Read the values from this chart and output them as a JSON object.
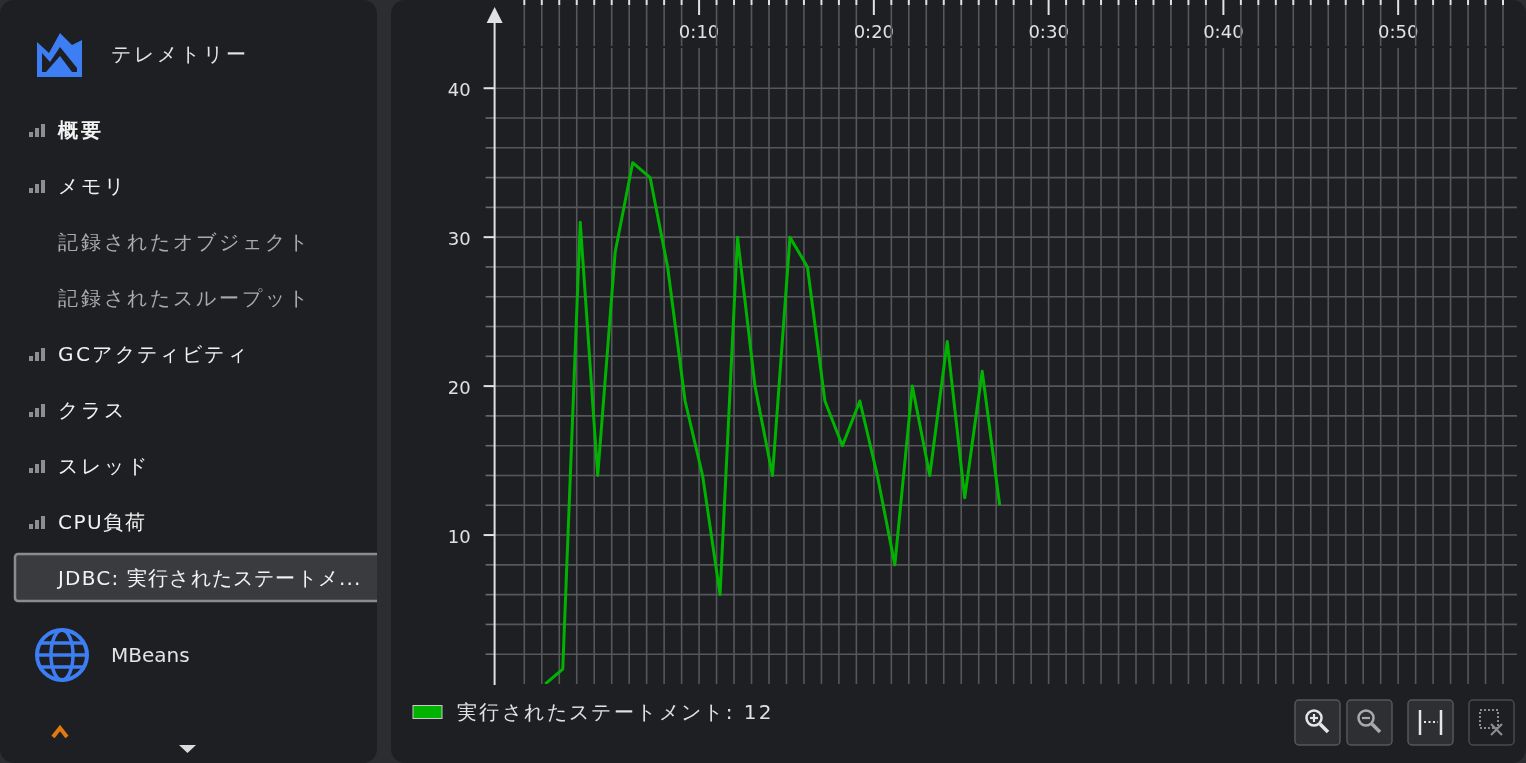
{
  "chart_data": {
    "type": "line",
    "x": [
      1.2,
      2.2,
      3.2,
      4.2,
      5.2,
      6.2,
      7.2,
      8.2,
      9.2,
      10.2,
      11.2,
      12.2,
      13.2,
      14.2,
      15.2,
      16.2,
      17.2,
      18.2,
      19.2,
      20.2,
      21.2,
      22.2,
      23.2,
      24.2,
      25.2,
      26.2,
      27.2
    ],
    "series": [
      {
        "name": "実行されたステートメント: 12",
        "color": "#00b300",
        "values": [
          0,
          1,
          31,
          14,
          29,
          35,
          34,
          28,
          19,
          14,
          6,
          30,
          20,
          14,
          30,
          28,
          19,
          16,
          19,
          14,
          8,
          20,
          14,
          23,
          12.5,
          21,
          12
        ]
      }
    ],
    "xlim": [
      -1.7,
      56.8
    ],
    "xticks": [
      {
        "value": 0,
        "label": null
      },
      {
        "value": 1,
        "label": null
      },
      {
        "value": 2,
        "label": null
      },
      {
        "value": 3,
        "label": null
      },
      {
        "value": 4,
        "label": null
      },
      {
        "value": 5,
        "label": null
      },
      {
        "value": 6,
        "label": null
      },
      {
        "value": 7,
        "label": null
      },
      {
        "value": 8,
        "label": null
      },
      {
        "value": 9,
        "label": null
      },
      {
        "value": 10,
        "label": "0:10"
      },
      {
        "value": 11,
        "label": null
      },
      {
        "value": 12,
        "label": null
      },
      {
        "value": 13,
        "label": null
      },
      {
        "value": 14,
        "label": null
      },
      {
        "value": 15,
        "label": null
      },
      {
        "value": 16,
        "label": null
      },
      {
        "value": 17,
        "label": null
      },
      {
        "value": 18,
        "label": null
      },
      {
        "value": 19,
        "label": null
      },
      {
        "value": 20,
        "label": "0:20"
      },
      {
        "value": 21,
        "label": null
      },
      {
        "value": 22,
        "label": null
      },
      {
        "value": 23,
        "label": null
      },
      {
        "value": 24,
        "label": null
      },
      {
        "value": 25,
        "label": null
      },
      {
        "value": 26,
        "label": null
      },
      {
        "value": 27,
        "label": null
      },
      {
        "value": 28,
        "label": null
      },
      {
        "value": 29,
        "label": null
      },
      {
        "value": 30,
        "label": "0:30"
      },
      {
        "value": 31,
        "label": null
      },
      {
        "value": 32,
        "label": null
      },
      {
        "value": 33,
        "label": null
      },
      {
        "value": 34,
        "label": null
      },
      {
        "value": 35,
        "label": null
      },
      {
        "value": 36,
        "label": null
      },
      {
        "value": 37,
        "label": null
      },
      {
        "value": 38,
        "label": null
      },
      {
        "value": 39,
        "label": null
      },
      {
        "value": 40,
        "label": "0:40"
      },
      {
        "value": 41,
        "label": null
      },
      {
        "value": 42,
        "label": null
      },
      {
        "value": 43,
        "label": null
      },
      {
        "value": 44,
        "label": null
      },
      {
        "value": 45,
        "label": null
      },
      {
        "value": 46,
        "label": null
      },
      {
        "value": 47,
        "label": null
      },
      {
        "value": 48,
        "label": null
      },
      {
        "value": 49,
        "label": null
      },
      {
        "value": 50,
        "label": "0:50"
      },
      {
        "value": 51,
        "label": null
      },
      {
        "value": 52,
        "label": null
      },
      {
        "value": 53,
        "label": null
      },
      {
        "value": 54,
        "label": null
      },
      {
        "value": 55,
        "label": null
      },
      {
        "value": 56,
        "label": null
      }
    ],
    "ylim": [
      0,
      42.7
    ],
    "yticks": [
      {
        "value": 2,
        "label": null
      },
      {
        "value": 4,
        "label": null
      },
      {
        "value": 6,
        "label": null
      },
      {
        "value": 8,
        "label": null
      },
      10,
      {
        "value": 12,
        "label": null
      },
      {
        "value": 14,
        "label": null
      },
      {
        "value": 16,
        "label": null
      },
      {
        "value": 18,
        "label": null
      },
      20,
      {
        "value": 22,
        "label": null
      },
      {
        "value": 24,
        "label": null
      },
      {
        "value": 26,
        "label": null
      },
      {
        "value": 28,
        "label": null
      },
      30,
      {
        "value": 32,
        "label": null
      },
      {
        "value": 34,
        "label": null
      },
      {
        "value": 36,
        "label": null
      },
      {
        "value": 38,
        "label": null
      },
      40
    ],
    "grid": true,
    "legend": "bottom left",
    "line_style": "solid",
    "annotations": [
      "テレメトリー",
      "概要",
      "メモリ",
      "記録されたオブジェクト",
      "記録されたスループット",
      "GCアクティビティ",
      "クラス",
      "スレッド",
      "CPU負荷",
      "JDBC: 実行されたステートメ...",
      "MBeans"
    ]
  }
}
